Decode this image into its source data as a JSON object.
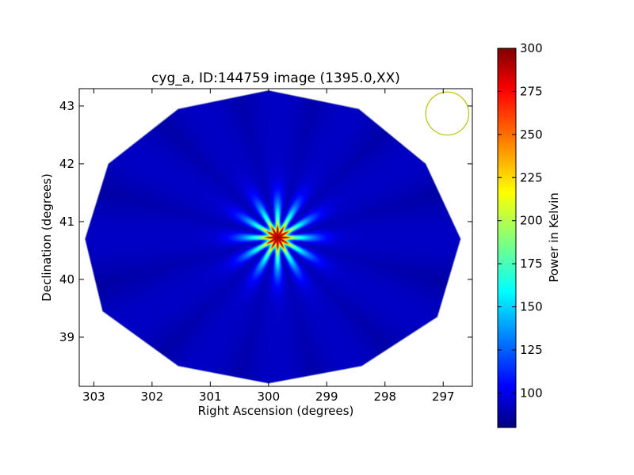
{
  "chart_data": {
    "type": "heatmap",
    "title": "cyg_a, ID:144759 image (1395.0,XX)",
    "xlabel": "Right Ascension (degrees)",
    "ylabel": "Declination (degrees)",
    "xlim": [
      303.25,
      296.5
    ],
    "ylim": [
      38.15,
      43.3
    ],
    "x_ticks": [
      303,
      302,
      301,
      300,
      299,
      298,
      297
    ],
    "y_ticks": [
      39,
      40,
      41,
      42,
      43
    ],
    "source_center": {
      "ra": 299.85,
      "dec": 40.73,
      "peak_kelvin": 290
    },
    "background_kelvin": 95,
    "spokes": 12,
    "coverage_polygon": [
      [
        303.15,
        40.7
      ],
      [
        302.75,
        42.0
      ],
      [
        301.55,
        42.95
      ],
      [
        300.0,
        43.27
      ],
      [
        298.45,
        42.95
      ],
      [
        297.3,
        42.0
      ],
      [
        296.7,
        40.7
      ],
      [
        297.1,
        39.35
      ],
      [
        298.4,
        38.5
      ],
      [
        300.0,
        38.2
      ],
      [
        301.55,
        38.5
      ],
      [
        302.85,
        39.45
      ]
    ],
    "beam_marker": {
      "ra": 296.93,
      "dec": 42.87,
      "radius_deg": 0.37,
      "color": "#bfbf00"
    },
    "colorbar": {
      "label": "Power in Kelvin",
      "min": 80,
      "max": 300,
      "ticks": [
        100,
        125,
        150,
        175,
        200,
        225,
        250,
        275,
        300
      ]
    }
  }
}
